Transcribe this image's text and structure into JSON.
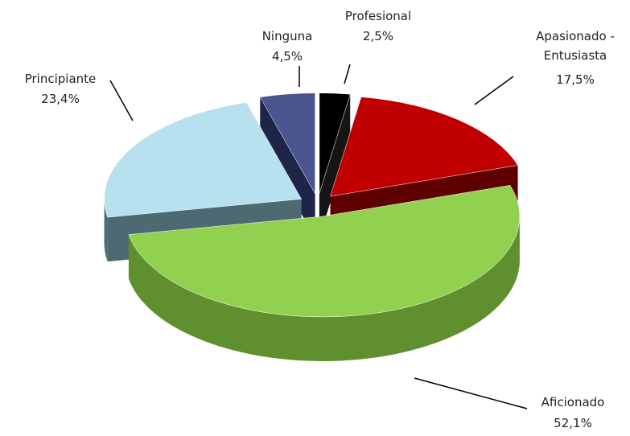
{
  "chart_data": {
    "type": "pie",
    "categories": [
      "Profesional",
      "Apasionado - Entusiasta",
      "Aficionado",
      "Principiante",
      "Ninguna"
    ],
    "values": [
      2.5,
      17.5,
      52.1,
      23.4,
      4.5
    ],
    "value_labels": [
      "2,5%",
      "17,5%",
      "52,1%",
      "23,4%",
      "4,5%"
    ],
    "colors": [
      "#000000",
      "#c00000",
      "#92d050",
      "#b7e1ef",
      "#4a5590"
    ],
    "side_colors": [
      "#151515",
      "#5e0000",
      "#5f8f2e",
      "#4d6a72",
      "#1f2548"
    ]
  }
}
